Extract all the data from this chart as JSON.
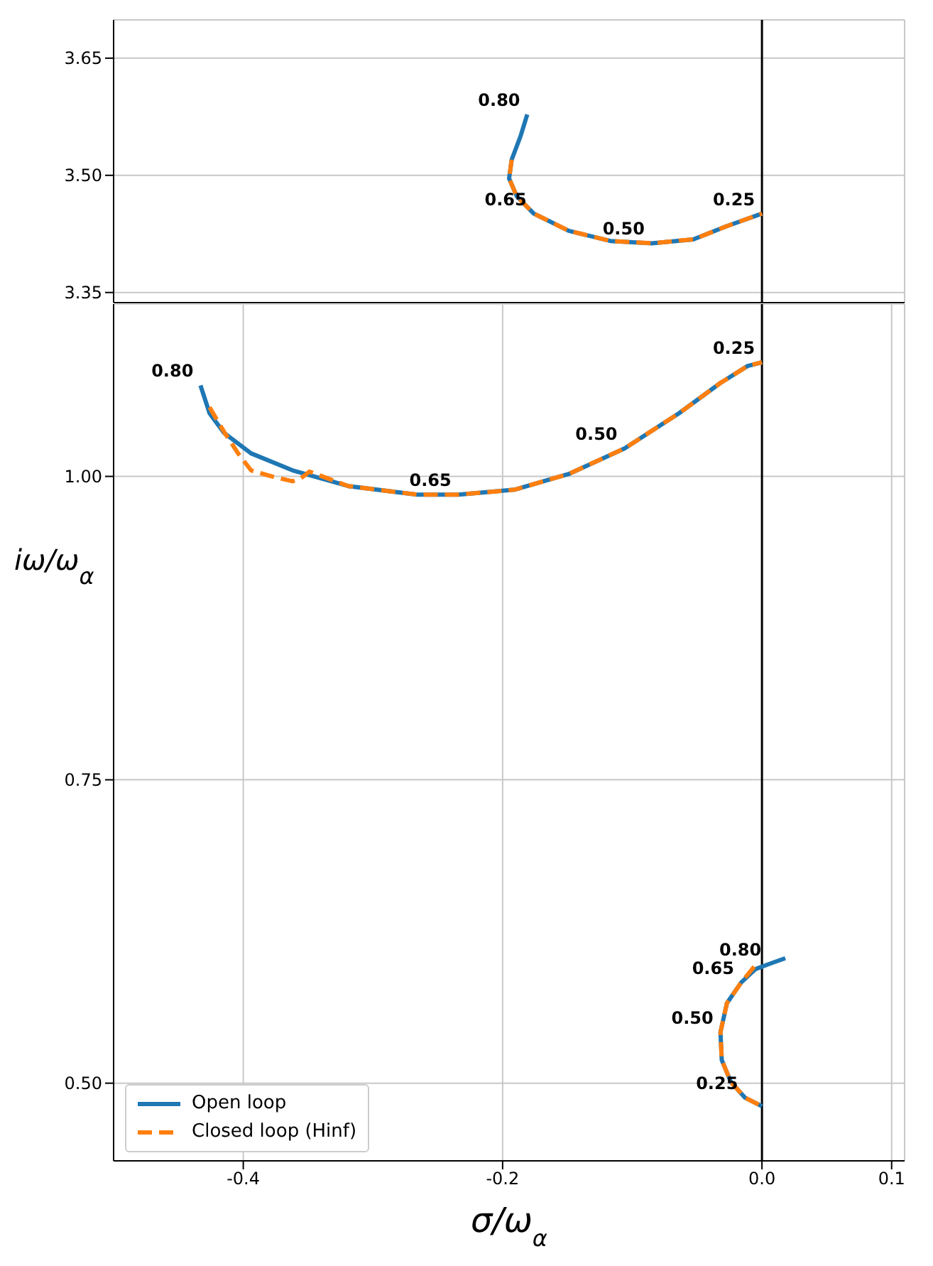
{
  "chart_data": [
    {
      "type": "line",
      "xlim": [
        -0.5,
        0.11
      ],
      "ylim": [
        3.337,
        3.699
      ],
      "yticks": [
        3.35,
        {
          "value": 3.5,
          "label": "3.50"
        },
        3.65
      ],
      "grid": true,
      "tick_labels": "y",
      "ref_lines": [
        {
          "axis": "x",
          "value": 0,
          "color": "#000000"
        }
      ],
      "series": [
        {
          "color": "#1f77b4",
          "line_style": "solid",
          "x": [
            -0.181,
            -0.186,
            -0.193,
            -0.195,
            -0.189,
            -0.176,
            -0.149,
            -0.117,
            -0.085,
            -0.053,
            -0.027,
            0
          ],
          "values": [
            3.578,
            3.551,
            3.52,
            3.496,
            3.473,
            3.451,
            3.429,
            3.416,
            3.413,
            3.418,
            3.435,
            3.451
          ]
        },
        {
          "color": "#ff7f0e",
          "line_style": "dashed",
          "x": [
            -0.193,
            -0.195,
            -0.189,
            -0.176,
            -0.149,
            -0.117,
            -0.085,
            -0.053,
            -0.027,
            0
          ],
          "values": [
            3.52,
            3.496,
            3.473,
            3.451,
            3.429,
            3.416,
            3.413,
            3.418,
            3.435,
            3.451
          ]
        }
      ],
      "annotations": [
        {
          "text": "0.80",
          "x": -0.181,
          "y": 3.578
        },
        {
          "text": "0.65",
          "x": -0.176,
          "y": 3.451
        },
        {
          "text": "0.50",
          "x": -0.085,
          "y": 3.413
        },
        {
          "text": "0.25",
          "x": 0,
          "y": 3.451
        }
      ]
    },
    {
      "type": "line",
      "xlabel": "σ/ω$_{α}$",
      "ylabel": "iω/ω$_{α}$",
      "xlim": [
        -0.5,
        0.11
      ],
      "xticks": [
        -0.4,
        -0.2,
        {
          "value": 0,
          "label": "0.0"
        },
        0.1
      ],
      "ylim": [
        0.436,
        1.142
      ],
      "yticks": [
        {
          "value": 0.5,
          "label": "0.50"
        },
        0.75,
        {
          "value": 1,
          "label": "1.00"
        }
      ],
      "grid": true,
      "legend": "bottom left",
      "ref_lines": [
        {
          "axis": "x",
          "value": 0,
          "color": "#000000"
        }
      ],
      "series": [
        {
          "name": "Open loop",
          "color": "#1f77b4",
          "line_style": "solid",
          "x": [
            -0.433,
            -0.426,
            -0.415,
            -0.394,
            -0.362,
            -0.319,
            -0.266,
            -0.234,
            -0.191,
            -0.149,
            -0.106,
            -0.064,
            -0.032,
            -0.011,
            0
          ],
          "values": [
            1.075,
            1.052,
            1.036,
            1.019,
            1.005,
            0.992,
            0.985,
            0.985,
            0.989,
            1.002,
            1.023,
            1.052,
            1.077,
            1.091,
            1.094
          ]
        },
        {
          "name": "Closed loop (Hinf)",
          "color": "#ff7f0e",
          "line_style": "dashed",
          "x": [
            -0.426,
            -0.415,
            -0.404,
            -0.394,
            -0.378,
            -0.362,
            -0.356,
            -0.349,
            -0.319,
            -0.266,
            -0.234,
            -0.191,
            -0.149,
            -0.106,
            -0.064,
            -0.032,
            -0.011,
            0
          ],
          "values": [
            1.057,
            1.037,
            1.019,
            1.005,
            1.0,
            0.996,
            0.998,
            1.004,
            0.992,
            0.985,
            0.985,
            0.989,
            1.002,
            1.023,
            1.052,
            1.077,
            1.091,
            1.094
          ]
        },
        {
          "color": "#1f77b4",
          "line_style": "solid",
          "x": [
            0.018,
            0.005,
            -0.005,
            -0.016,
            -0.027,
            -0.032,
            -0.031,
            -0.024,
            -0.013,
            0
          ],
          "values": [
            0.603,
            0.598,
            0.594,
            0.583,
            0.566,
            0.542,
            0.519,
            0.501,
            0.488,
            0.481
          ]
        },
        {
          "color": "#ff7f0e",
          "line_style": "dashed",
          "x": [
            -0.006,
            -0.016,
            -0.027,
            -0.032,
            -0.031,
            -0.024,
            -0.013,
            0
          ],
          "values": [
            0.596,
            0.583,
            0.566,
            0.542,
            0.519,
            0.501,
            0.488,
            0.481
          ]
        }
      ],
      "annotations": [
        {
          "text": "0.80",
          "x": -0.433,
          "y": 1.075
        },
        {
          "text": "0.65",
          "x": -0.234,
          "y": 0.985
        },
        {
          "text": "0.50",
          "x": -0.106,
          "y": 1.023
        },
        {
          "text": "0.25",
          "x": 0,
          "y": 1.094
        },
        {
          "text": "0.80",
          "x": 0.005,
          "y": 0.598
        },
        {
          "text": "0.65",
          "x": -0.016,
          "y": 0.583
        },
        {
          "text": "0.50",
          "x": -0.032,
          "y": 0.542
        },
        {
          "text": "0.25",
          "x": -0.013,
          "y": 0.488
        }
      ]
    }
  ]
}
